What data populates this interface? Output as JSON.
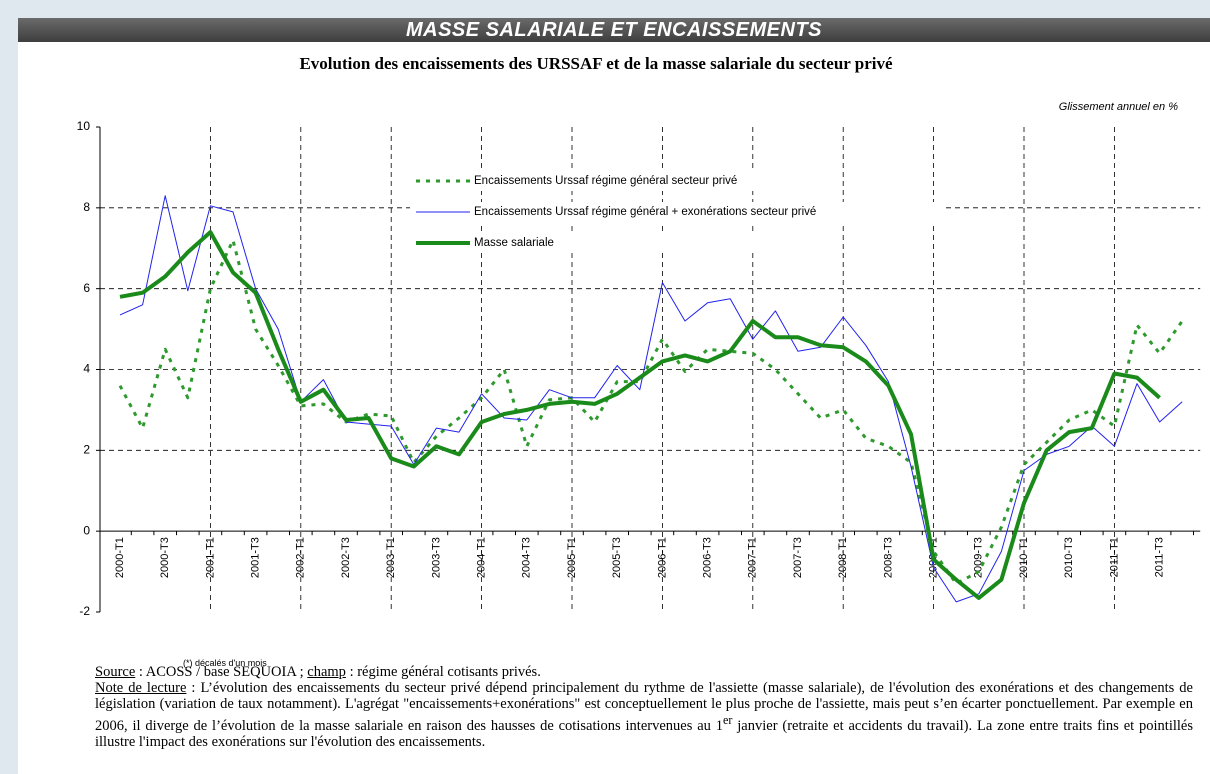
{
  "header": {
    "title": "MASSE SALARIALE ET ENCAISSEMENTS"
  },
  "chart_data": {
    "type": "line",
    "title": "Evolution des encaissements des URSSAF et de la masse salariale du secteur privé",
    "subtitle": "Glissement annuel en %",
    "categories": [
      "2000-T1",
      null,
      "2000-T3",
      null,
      "2001-T1",
      null,
      "2001-T3",
      null,
      "2002-T1",
      null,
      "2002-T3",
      null,
      "2003-T1",
      null,
      "2003-T3",
      null,
      "2004-T1",
      null,
      "2004-T3",
      null,
      "2005-T1",
      null,
      "2005-T3",
      null,
      "2006-T1",
      null,
      "2006-T3",
      null,
      "2007-T1",
      null,
      "2007-T3",
      null,
      "2008-T1",
      null,
      "2008-T3",
      null,
      "2009-T1",
      null,
      "2009-T3",
      null,
      "2010-T1",
      null,
      "2010-T3",
      null,
      "2011-T1",
      null,
      "2011-T3",
      null
    ],
    "series": [
      {
        "name": "Encaissements Urssaf régime général secteur privé",
        "color": "#2e9a2e",
        "style": "dotted",
        "values": [
          3.6,
          2.55,
          4.5,
          3.3,
          6.0,
          7.2,
          5.0,
          4.1,
          3.1,
          3.15,
          2.7,
          2.9,
          2.85,
          1.7,
          2.35,
          2.8,
          3.3,
          4.0,
          2.1,
          3.25,
          3.3,
          2.7,
          3.7,
          3.7,
          4.75,
          3.95,
          4.5,
          4.45,
          4.4,
          4.0,
          3.4,
          2.8,
          3.0,
          2.3,
          2.1,
          1.7,
          -0.5,
          -1.3,
          -1.0,
          0.1,
          1.65,
          2.2,
          2.75,
          3.0,
          2.6,
          5.1,
          4.4,
          5.2
        ]
      },
      {
        "name": "Encaissements Urssaf régime général + exonérations secteur privé",
        "color": "#2222ee",
        "style": "thin",
        "values": [
          5.35,
          5.6,
          8.3,
          5.95,
          8.05,
          7.9,
          6.0,
          5.0,
          3.2,
          3.75,
          2.7,
          2.65,
          2.6,
          1.65,
          2.55,
          2.45,
          3.4,
          2.8,
          2.75,
          3.5,
          3.3,
          3.3,
          4.1,
          3.5,
          6.15,
          5.2,
          5.65,
          5.75,
          4.75,
          5.45,
          4.45,
          4.55,
          5.3,
          4.6,
          3.7,
          1.6,
          -0.9,
          -1.75,
          -1.55,
          -0.5,
          1.5,
          1.9,
          2.1,
          2.6,
          2.1,
          3.65,
          2.7,
          3.2
        ]
      },
      {
        "name": "Masse salariale",
        "color": "#1a8a1a",
        "style": "thick",
        "values": [
          5.8,
          5.9,
          6.3,
          6.9,
          7.4,
          6.4,
          5.9,
          4.5,
          3.2,
          3.5,
          2.75,
          2.8,
          1.8,
          1.6,
          2.1,
          1.9,
          2.7,
          2.9,
          3.0,
          3.15,
          3.2,
          3.15,
          3.4,
          3.8,
          4.2,
          4.35,
          4.2,
          4.45,
          5.2,
          4.8,
          4.8,
          4.6,
          4.55,
          4.2,
          3.6,
          2.4,
          -0.7,
          -1.2,
          -1.65,
          -1.2,
          0.7,
          2.0,
          2.45,
          2.55,
          3.9,
          3.8,
          3.3,
          null
        ]
      }
    ],
    "ylim": [
      -2,
      10
    ],
    "yticks": [
      -2,
      0,
      2,
      4,
      6,
      8,
      10
    ],
    "grid": true
  },
  "notes": {
    "footnote": "(*) décalés d'un mois",
    "source": [
      "Source",
      " : ACOSS / base SEQUOIA ; ",
      "champ",
      " : régime général cotisants privés."
    ],
    "note": [
      "Note de lecture",
      " : L’évolution des encaissements du secteur privé dépend principalement du rythme de l'assiette (masse salariale), de l'évolution des exonérations et des changements de législation (variation de taux notamment). L'agrégat \"encaissements+exonérations\" est conceptuellement le plus proche de l'assiette, mais peut s’en écarter ponctuellement. Par exemple en 2006, il diverge de l’évolution de la masse salariale en raison des hausses de cotisations intervenues au 1",
      "er",
      " janvier (retraite et accidents du travail). La zone entre traits fins et pointillés illustre l'impact des exonérations sur l'évolution des encaissements."
    ]
  }
}
